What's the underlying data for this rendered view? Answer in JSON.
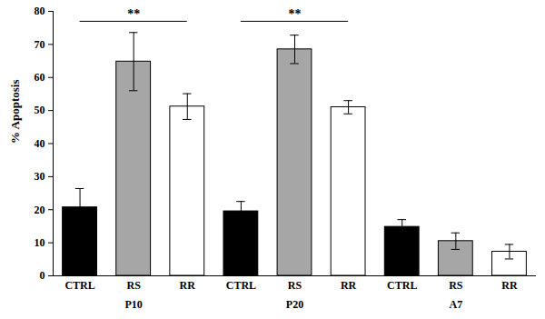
{
  "chart_data": {
    "type": "bar",
    "y_label": "% Apoptosis",
    "groups": [
      "P10",
      "P20",
      "A7"
    ],
    "categories": [
      "CTRL",
      "RS",
      "RR"
    ],
    "colors": [
      "#000000",
      "#a6a6a6",
      "#ffffff"
    ],
    "values": [
      [
        20.7,
        64.8,
        51.2
      ],
      [
        19.5,
        68.5,
        51.0
      ],
      [
        14.8,
        10.5,
        7.3
      ]
    ],
    "errors": [
      [
        5.7,
        8.8,
        3.9
      ],
      [
        3.0,
        4.3,
        2.0
      ],
      [
        2.2,
        2.5,
        2.2
      ]
    ],
    "ylim": [
      0,
      80
    ],
    "yticks": [
      0,
      10,
      20,
      30,
      40,
      50,
      60,
      70,
      80
    ],
    "annotations": [
      {
        "text": "**",
        "group": "P10",
        "y": 77
      },
      {
        "text": "**",
        "group": "P20",
        "y": 77
      }
    ]
  }
}
